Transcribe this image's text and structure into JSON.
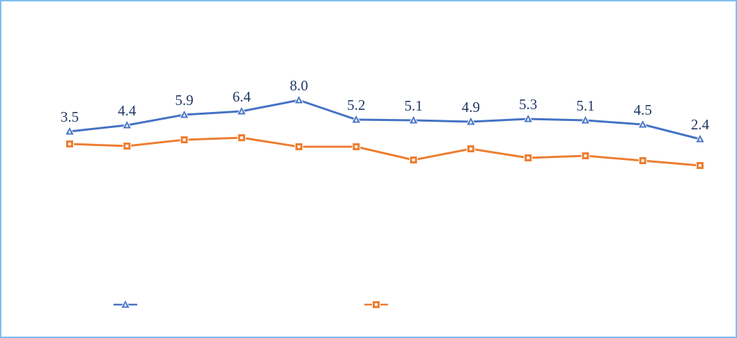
{
  "window": {
    "border_color": "#7dbef0",
    "background_color": "#ffffff"
  },
  "chart_data": {
    "type": "line",
    "grid": false,
    "axes_visible": false,
    "point_count": 12,
    "label_color": "#1f3864",
    "series": [
      {
        "name": "series-blue",
        "marker": "triangle",
        "color": "#4472c4",
        "labels_visible": true,
        "values": [
          3.5,
          4.4,
          5.9,
          6.4,
          8.0,
          5.2,
          5.1,
          4.9,
          5.3,
          5.1,
          4.5,
          2.4
        ],
        "labels": [
          "3.5",
          "4.4",
          "5.9",
          "6.4",
          "8.0",
          "5.2",
          "5.1",
          "4.9",
          "5.3",
          "5.1",
          "4.5",
          "2.4"
        ]
      },
      {
        "name": "series-orange",
        "marker": "square",
        "color": "#ed7d31",
        "labels_visible": false,
        "values": [
          1.7,
          1.4,
          2.3,
          2.6,
          1.3,
          1.3,
          -0.6,
          1.0,
          -0.3,
          0.0,
          -0.7,
          -1.4
        ],
        "labels": []
      }
    ],
    "legend": {
      "position": "bottom",
      "items": [
        {
          "marker": "triangle",
          "color": "#4472c4",
          "label": ""
        },
        {
          "marker": "square",
          "color": "#ed7d31",
          "label": ""
        }
      ]
    },
    "value_axis": {
      "reference_value": 8.0,
      "implied_range": [
        -2,
        9
      ]
    }
  }
}
